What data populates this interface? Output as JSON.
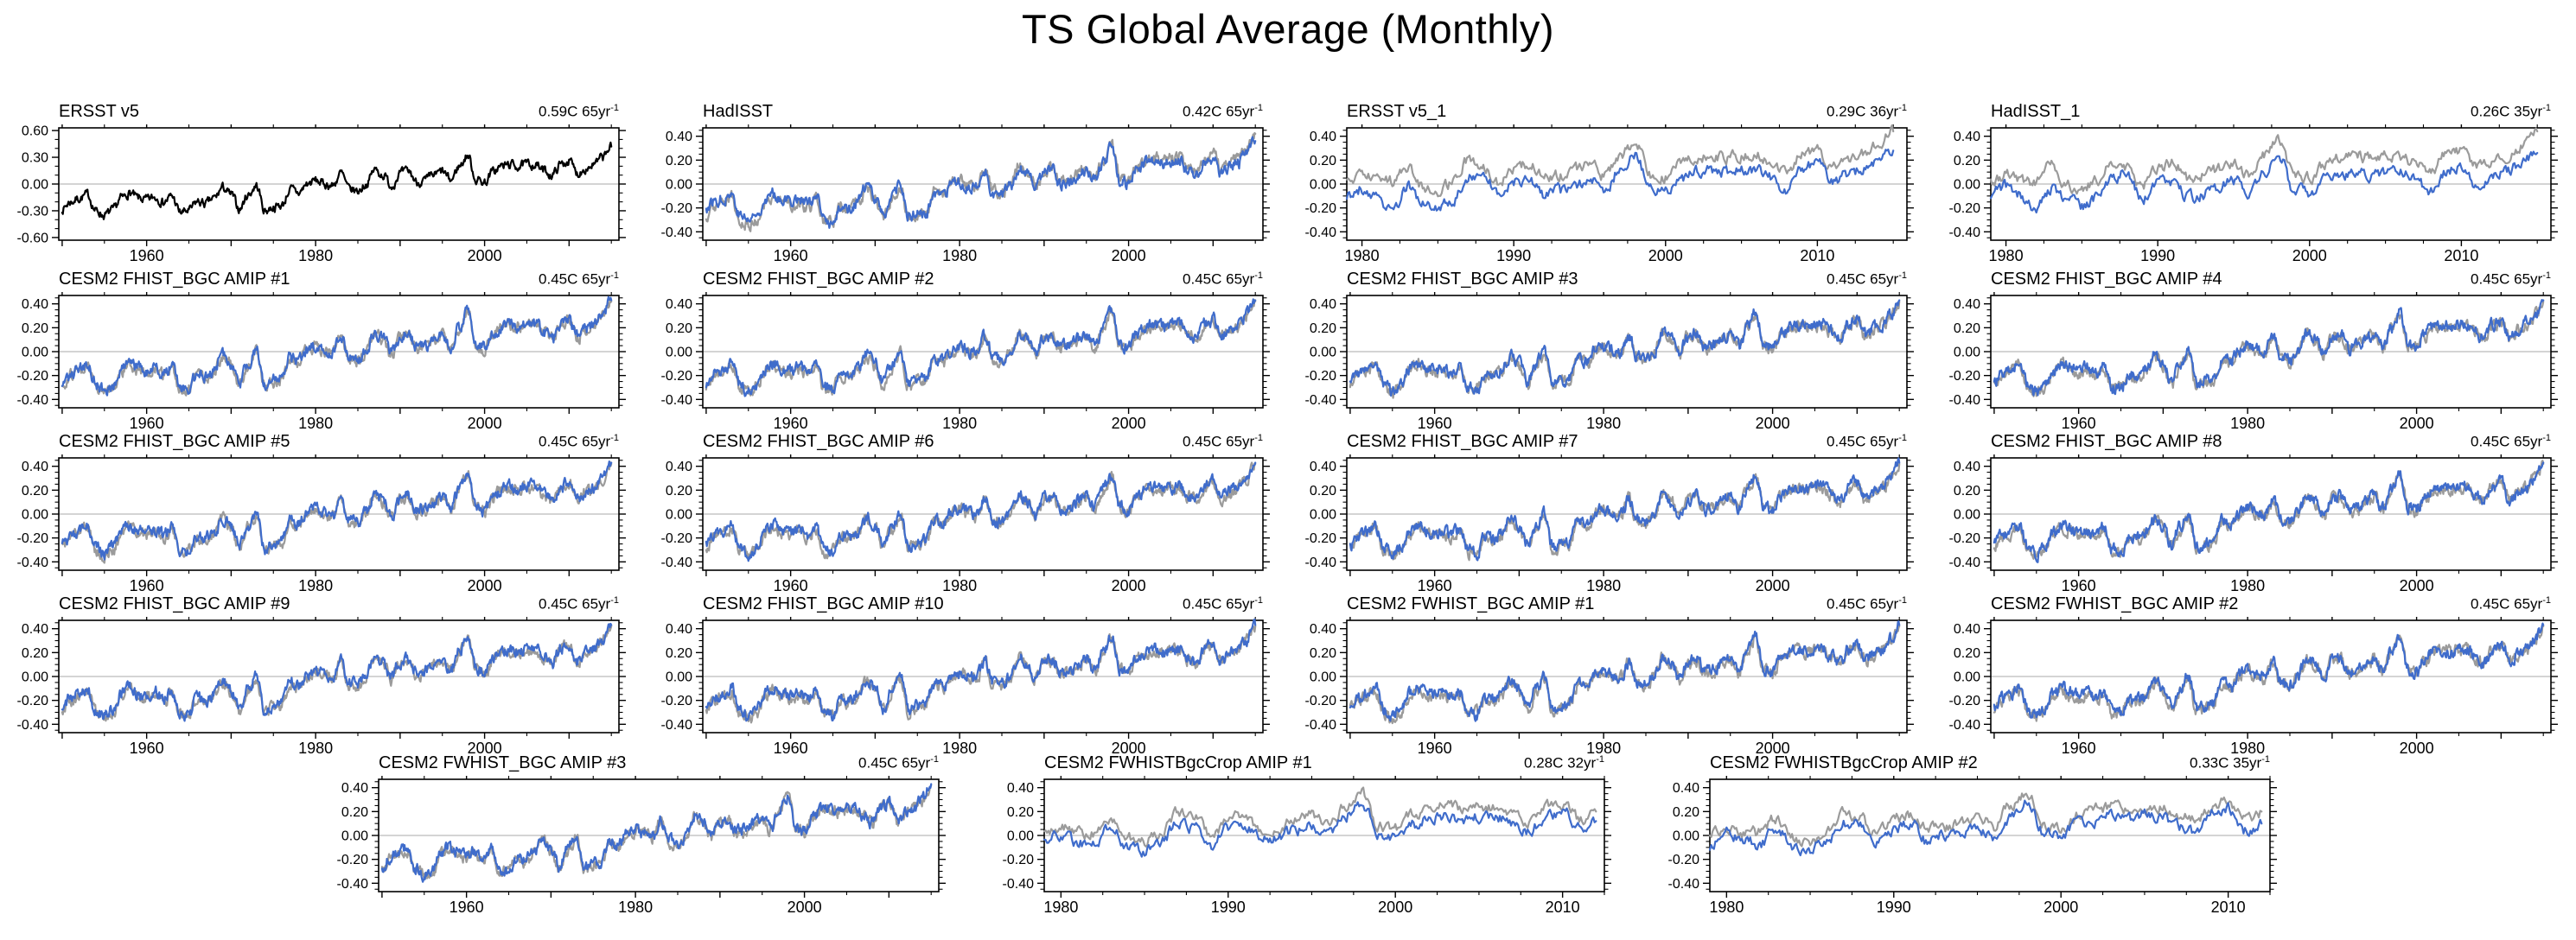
{
  "title": "TS Global Average (Monthly)",
  "style": {
    "black": "#000000",
    "blue": "#3f6ccb",
    "gray": "#9b9b9b",
    "zero_line": "#aaaaaa",
    "axis": "#000000"
  },
  "chart_data": {
    "type": "line",
    "title": "TS Global Average (Monthly)",
    "xlabel": "",
    "ylabel": "",
    "grid": "zero-line-only",
    "legend": "none",
    "monthly_noise": 0.05,
    "x_domains": {
      "full": {
        "start": 1949.6,
        "end": 2015.9,
        "major_start": 1950,
        "major_step": 10,
        "minor_step": 5,
        "labels": [
          1960,
          1980,
          2000
        ]
      },
      "recent": {
        "start": 1979.0,
        "end": 2015.9,
        "major_start": 1980,
        "major_step": 10,
        "minor_step": 2.5,
        "labels": [
          1980,
          1990,
          2000,
          2010
        ]
      },
      "recent_short": {
        "start": 1979.0,
        "end": 2012.5,
        "major_start": 1980,
        "major_step": 10,
        "minor_step": 2.5,
        "labels": [
          1980,
          1990,
          2000,
          2010
        ]
      }
    },
    "y_domains": {
      "wide": {
        "min": -0.63,
        "max": 0.63,
        "label_max": 0.6,
        "major": 0.3,
        "minor": 0.1,
        "tick_labels": [
          "0.60",
          "0.30",
          "0.00",
          "-0.30",
          "-0.60"
        ]
      },
      "narrow": {
        "min": -0.47,
        "max": 0.47,
        "label_max": 0.4,
        "major": 0.2,
        "minor": 0.05,
        "tick_labels": [
          "0.40",
          "0.20",
          "0.00",
          "-0.20",
          "-0.40"
        ]
      }
    },
    "series_library": {
      "ersst_v5": {
        "x_start": 1950,
        "step": 1,
        "values": [
          -0.28,
          -0.2,
          -0.16,
          -0.12,
          -0.3,
          -0.35,
          -0.3,
          -0.16,
          -0.1,
          -0.16,
          -0.18,
          -0.15,
          -0.2,
          -0.14,
          -0.32,
          -0.3,
          -0.2,
          -0.22,
          -0.16,
          -0.04,
          -0.12,
          -0.28,
          -0.12,
          -0.02,
          -0.3,
          -0.26,
          -0.24,
          -0.06,
          -0.1,
          0.0,
          0.04,
          0.0,
          -0.02,
          0.12,
          -0.06,
          -0.08,
          0.0,
          0.16,
          0.1,
          -0.02,
          0.12,
          0.14,
          0.02,
          0.04,
          0.1,
          0.14,
          0.04,
          0.2,
          0.32,
          0.05,
          0.02,
          0.14,
          0.2,
          0.22,
          0.2,
          0.22,
          0.22,
          0.15,
          0.1,
          0.22,
          0.26,
          0.12,
          0.18,
          0.22,
          0.3,
          0.42
        ]
      },
      "hadisst": {
        "x_start": 1950,
        "step": 1,
        "values": [
          -0.2,
          -0.14,
          -0.12,
          -0.08,
          -0.26,
          -0.3,
          -0.26,
          -0.12,
          -0.08,
          -0.12,
          -0.14,
          -0.12,
          -0.16,
          -0.12,
          -0.3,
          -0.34,
          -0.18,
          -0.2,
          -0.14,
          -0.02,
          -0.1,
          -0.26,
          -0.1,
          -0.02,
          -0.28,
          -0.24,
          -0.26,
          -0.08,
          -0.12,
          -0.02,
          0.02,
          -0.02,
          -0.04,
          0.1,
          -0.08,
          -0.1,
          -0.02,
          0.14,
          0.08,
          -0.04,
          0.1,
          0.12,
          0.0,
          0.02,
          0.08,
          0.12,
          0.02,
          0.18,
          0.3,
          0.03,
          0.0,
          0.12,
          0.17,
          0.19,
          0.17,
          0.19,
          0.19,
          0.12,
          0.07,
          0.19,
          0.22,
          0.09,
          0.15,
          0.18,
          0.26,
          0.36
        ]
      },
      "cesm_amip": {
        "x_start": 1950,
        "step": 1,
        "values": [
          -0.26,
          -0.18,
          -0.15,
          -0.1,
          -0.28,
          -0.33,
          -0.28,
          -0.14,
          -0.09,
          -0.14,
          -0.16,
          -0.13,
          -0.18,
          -0.12,
          -0.3,
          -0.32,
          -0.18,
          -0.2,
          -0.15,
          -0.03,
          -0.1,
          -0.26,
          -0.1,
          0.0,
          -0.28,
          -0.24,
          -0.22,
          -0.05,
          -0.08,
          0.01,
          0.05,
          0.01,
          -0.01,
          0.13,
          -0.05,
          -0.07,
          0.01,
          0.17,
          0.11,
          -0.01,
          0.13,
          0.15,
          0.03,
          0.05,
          0.11,
          0.15,
          0.05,
          0.21,
          0.33,
          0.06,
          0.03,
          0.15,
          0.21,
          0.23,
          0.21,
          0.23,
          0.23,
          0.16,
          0.11,
          0.23,
          0.27,
          0.13,
          0.19,
          0.23,
          0.31,
          0.43
        ]
      },
      "obs_recent": {
        "x_start": 1979,
        "step": 1,
        "values": [
          0.02,
          0.08,
          0.02,
          0.02,
          0.15,
          -0.02,
          -0.05,
          0.02,
          0.2,
          0.14,
          0.0,
          0.14,
          0.17,
          0.05,
          0.07,
          0.12,
          0.17,
          0.07,
          0.25,
          0.36,
          0.08,
          0.05,
          0.17,
          0.22,
          0.24,
          0.22,
          0.24,
          0.24,
          0.17,
          0.12,
          0.24,
          0.28,
          0.14,
          0.2,
          0.24,
          0.32,
          0.44
        ]
      },
      "ersst_v5_1": {
        "x_start": 1979,
        "step": 1,
        "values": [
          -0.1,
          -0.04,
          -0.12,
          -0.22,
          -0.02,
          -0.16,
          -0.2,
          -0.14,
          0.06,
          0.12,
          -0.1,
          0.02,
          0.04,
          -0.1,
          -0.06,
          -0.02,
          0.04,
          -0.06,
          0.12,
          0.26,
          -0.04,
          -0.06,
          0.05,
          0.1,
          0.12,
          0.1,
          0.12,
          0.12,
          0.05,
          -0.05,
          0.12,
          0.18,
          0.02,
          0.08,
          0.12,
          0.2,
          0.28
        ]
      },
      "hadisst_1": {
        "x_start": 1979,
        "step": 1,
        "values": [
          -0.08,
          -0.02,
          -0.1,
          -0.2,
          -0.04,
          -0.14,
          -0.18,
          -0.12,
          0.05,
          0.1,
          -0.12,
          0.0,
          0.03,
          -0.12,
          -0.08,
          -0.03,
          0.03,
          -0.07,
          0.1,
          0.24,
          -0.05,
          -0.07,
          0.03,
          0.08,
          0.1,
          0.08,
          0.1,
          0.1,
          0.03,
          -0.07,
          0.1,
          0.16,
          0.0,
          0.06,
          0.1,
          0.18,
          0.26
        ]
      },
      "obs_recent_short": {
        "x_start": 1979,
        "step": 1,
        "values": [
          0.02,
          0.08,
          0.02,
          0.02,
          0.15,
          -0.02,
          -0.05,
          0.02,
          0.2,
          0.14,
          0.0,
          0.14,
          0.17,
          0.05,
          0.07,
          0.12,
          0.17,
          0.07,
          0.25,
          0.36,
          0.08,
          0.05,
          0.17,
          0.22,
          0.24,
          0.22,
          0.24,
          0.24,
          0.17,
          0.12,
          0.24,
          0.28,
          0.14,
          0.2
        ]
      },
      "bgccrop_1": {
        "x_start": 1979,
        "step": 1,
        "values": [
          -0.06,
          0.0,
          -0.06,
          -0.06,
          0.07,
          -0.1,
          -0.13,
          -0.06,
          0.12,
          0.06,
          -0.08,
          0.06,
          0.09,
          -0.03,
          -0.01,
          0.04,
          0.09,
          -0.01,
          0.17,
          0.28,
          0.0,
          -0.03,
          0.09,
          0.14,
          0.16,
          0.14,
          0.16,
          0.16,
          0.09,
          0.04,
          0.16,
          0.2,
          0.06,
          0.12
        ]
      },
      "bgccrop_2": {
        "x_start": 1979,
        "step": 1,
        "values": [
          -0.08,
          0.02,
          -0.04,
          -0.08,
          0.06,
          -0.12,
          -0.11,
          -0.04,
          0.1,
          0.08,
          -0.06,
          0.04,
          0.11,
          -0.05,
          0.01,
          0.02,
          0.07,
          -0.03,
          0.15,
          0.3,
          0.02,
          -0.01,
          0.11,
          0.12,
          0.18,
          0.12,
          0.18,
          0.14,
          0.07,
          0.02,
          0.18,
          0.22,
          0.04,
          0.1
        ]
      }
    },
    "panels": [
      {
        "title": "ERSST v5",
        "rate": "0.59C 65yr",
        "rate_sup": "-1",
        "x": "full",
        "y": "wide",
        "series": [
          {
            "key": "ersst_v5",
            "color": "black"
          }
        ]
      },
      {
        "title": "HadISST",
        "rate": "0.42C 65yr",
        "rate_sup": "-1",
        "x": "full",
        "y": "narrow",
        "series": [
          {
            "key": "ersst_v5",
            "color": "gray"
          },
          {
            "key": "hadisst",
            "color": "blue"
          }
        ]
      },
      {
        "title": "ERSST v5_1",
        "rate": "0.29C 36yr",
        "rate_sup": "-1",
        "x": "recent",
        "y": "narrow",
        "series": [
          {
            "key": "obs_recent",
            "color": "gray"
          },
          {
            "key": "ersst_v5_1",
            "color": "blue"
          }
        ]
      },
      {
        "title": "HadISST_1",
        "rate": "0.26C 35yr",
        "rate_sup": "-1",
        "x": "recent",
        "y": "narrow",
        "series": [
          {
            "key": "obs_recent",
            "color": "gray"
          },
          {
            "key": "hadisst_1",
            "color": "blue"
          }
        ]
      },
      {
        "title": "CESM2 FHIST_BGC AMIP #1",
        "rate": "0.45C 65yr",
        "rate_sup": "-1",
        "x": "full",
        "y": "narrow",
        "series": [
          {
            "key": "ersst_v5",
            "color": "gray"
          },
          {
            "key": "cesm_amip",
            "color": "blue"
          }
        ]
      },
      {
        "title": "CESM2 FHIST_BGC AMIP #2",
        "rate": "0.45C 65yr",
        "rate_sup": "-1",
        "x": "full",
        "y": "narrow",
        "series": [
          {
            "key": "ersst_v5",
            "color": "gray"
          },
          {
            "key": "cesm_amip",
            "color": "blue"
          }
        ]
      },
      {
        "title": "CESM2 FHIST_BGC AMIP #3",
        "rate": "0.45C 65yr",
        "rate_sup": "-1",
        "x": "full",
        "y": "narrow",
        "series": [
          {
            "key": "ersst_v5",
            "color": "gray"
          },
          {
            "key": "cesm_amip",
            "color": "blue"
          }
        ]
      },
      {
        "title": "CESM2 FHIST_BGC AMIP #4",
        "rate": "0.45C 65yr",
        "rate_sup": "-1",
        "x": "full",
        "y": "narrow",
        "series": [
          {
            "key": "ersst_v5",
            "color": "gray"
          },
          {
            "key": "cesm_amip",
            "color": "blue"
          }
        ]
      },
      {
        "title": "CESM2 FHIST_BGC AMIP #5",
        "rate": "0.45C 65yr",
        "rate_sup": "-1",
        "x": "full",
        "y": "narrow",
        "series": [
          {
            "key": "ersst_v5",
            "color": "gray"
          },
          {
            "key": "cesm_amip",
            "color": "blue"
          }
        ]
      },
      {
        "title": "CESM2 FHIST_BGC AMIP #6",
        "rate": "0.45C 65yr",
        "rate_sup": "-1",
        "x": "full",
        "y": "narrow",
        "series": [
          {
            "key": "ersst_v5",
            "color": "gray"
          },
          {
            "key": "cesm_amip",
            "color": "blue"
          }
        ]
      },
      {
        "title": "CESM2 FHIST_BGC AMIP #7",
        "rate": "0.45C 65yr",
        "rate_sup": "-1",
        "x": "full",
        "y": "narrow",
        "series": [
          {
            "key": "ersst_v5",
            "color": "gray"
          },
          {
            "key": "cesm_amip",
            "color": "blue"
          }
        ]
      },
      {
        "title": "CESM2 FHIST_BGC AMIP #8",
        "rate": "0.45C 65yr",
        "rate_sup": "-1",
        "x": "full",
        "y": "narrow",
        "series": [
          {
            "key": "ersst_v5",
            "color": "gray"
          },
          {
            "key": "cesm_amip",
            "color": "blue"
          }
        ]
      },
      {
        "title": "CESM2 FHIST_BGC AMIP #9",
        "rate": "0.45C 65yr",
        "rate_sup": "-1",
        "x": "full",
        "y": "narrow",
        "series": [
          {
            "key": "ersst_v5",
            "color": "gray"
          },
          {
            "key": "cesm_amip",
            "color": "blue"
          }
        ]
      },
      {
        "title": "CESM2 FHIST_BGC AMIP #10",
        "rate": "0.45C 65yr",
        "rate_sup": "-1",
        "x": "full",
        "y": "narrow",
        "series": [
          {
            "key": "ersst_v5",
            "color": "gray"
          },
          {
            "key": "cesm_amip",
            "color": "blue"
          }
        ]
      },
      {
        "title": "CESM2 FWHIST_BGC AMIP #1",
        "rate": "0.45C 65yr",
        "rate_sup": "-1",
        "x": "full",
        "y": "narrow",
        "series": [
          {
            "key": "ersst_v5",
            "color": "gray"
          },
          {
            "key": "cesm_amip",
            "color": "blue"
          }
        ]
      },
      {
        "title": "CESM2 FWHIST_BGC AMIP #2",
        "rate": "0.45C 65yr",
        "rate_sup": "-1",
        "x": "full",
        "y": "narrow",
        "series": [
          {
            "key": "ersst_v5",
            "color": "gray"
          },
          {
            "key": "cesm_amip",
            "color": "blue"
          }
        ]
      },
      {
        "title": "CESM2 FWHIST_BGC AMIP #3",
        "rate": "0.45C 65yr",
        "rate_sup": "-1",
        "x": "full",
        "y": "narrow",
        "series": [
          {
            "key": "ersst_v5",
            "color": "gray"
          },
          {
            "key": "cesm_amip",
            "color": "blue"
          }
        ]
      },
      {
        "title": "CESM2 FWHISTBgcCrop AMIP #1",
        "rate": "0.28C 32yr",
        "rate_sup": "-1",
        "x": "recent_short",
        "y": "narrow",
        "series": [
          {
            "key": "obs_recent_short",
            "color": "gray"
          },
          {
            "key": "bgccrop_1",
            "color": "blue"
          }
        ]
      },
      {
        "title": "CESM2 FWHISTBgcCrop AMIP #2",
        "rate": "0.33C 35yr",
        "rate_sup": "-1",
        "x": "recent_short",
        "y": "narrow",
        "series": [
          {
            "key": "obs_recent_short",
            "color": "gray"
          },
          {
            "key": "bgccrop_2",
            "color": "blue"
          }
        ]
      }
    ]
  }
}
